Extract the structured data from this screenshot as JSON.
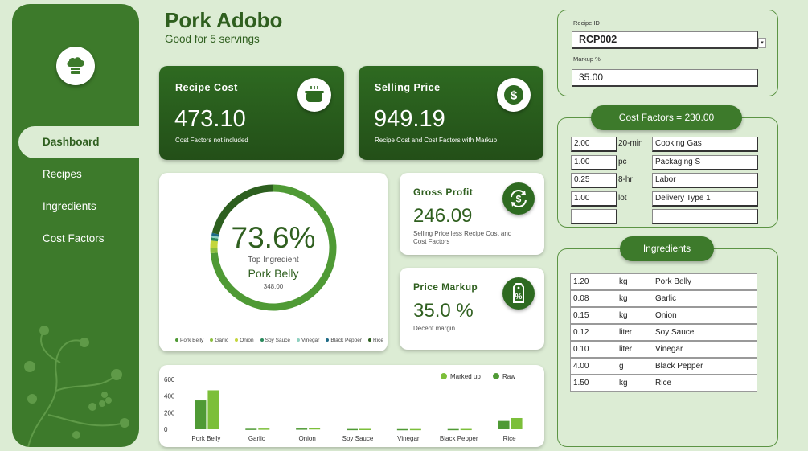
{
  "header": {
    "title": "Pork Adobo",
    "subtitle": "Good for 5 servings"
  },
  "sidebar": {
    "logo_icon": "chef-hat-icon",
    "items": [
      {
        "label": "Dashboard",
        "active": true
      },
      {
        "label": "Recipes",
        "active": false
      },
      {
        "label": "Ingredients",
        "active": false
      },
      {
        "label": "Cost Factors",
        "active": false
      }
    ]
  },
  "cards": {
    "recipe_cost": {
      "label": "Recipe Cost",
      "value": "473.10",
      "note": "Cost Factors not included",
      "icon": "pot-icon"
    },
    "selling_price": {
      "label": "Selling Price",
      "value": "949.19",
      "note": "Recipe Cost and Cost Factors with Markup",
      "icon": "dollar-icon"
    },
    "gross_profit": {
      "label": "Gross Profit",
      "value": "246.09",
      "note": "Selling Price less Recipe Cost and Cost Factors",
      "icon": "exchange-dollar-icon"
    },
    "price_markup": {
      "label": "Price Markup",
      "value": "35.0 %",
      "note": "Decent margin.",
      "icon": "percent-tag-icon"
    }
  },
  "donut": {
    "percent": "73.6%",
    "caption": "Top Ingredient",
    "name": "Pork Belly",
    "amount": "348.00"
  },
  "recipe_panel": {
    "recipe_id_label": "Recipe ID",
    "recipe_id": "RCP002",
    "markup_label": "Markup %",
    "markup": "35.00"
  },
  "cost_factors": {
    "title": "Cost Factors = 230.00",
    "rows": [
      {
        "qty": "2.00",
        "unit": "20-min",
        "name": "Cooking Gas"
      },
      {
        "qty": "1.00",
        "unit": "pc",
        "name": "Packaging S"
      },
      {
        "qty": "0.25",
        "unit": "8-hr",
        "name": "Labor"
      },
      {
        "qty": "1.00",
        "unit": "lot",
        "name": "Delivery Type 1"
      },
      {
        "qty": "",
        "unit": "",
        "name": ""
      }
    ]
  },
  "ingredients": {
    "title": "Ingredients",
    "rows": [
      {
        "qty": "1.20",
        "unit": "kg",
        "name": "Pork Belly"
      },
      {
        "qty": "0.08",
        "unit": "kg",
        "name": "Garlic"
      },
      {
        "qty": "0.15",
        "unit": "kg",
        "name": "Onion"
      },
      {
        "qty": "0.12",
        "unit": "liter",
        "name": "Soy Sauce"
      },
      {
        "qty": "0.10",
        "unit": "liter",
        "name": "Vinegar"
      },
      {
        "qty": "4.00",
        "unit": "g",
        "name": "Black Pepper"
      },
      {
        "qty": "1.50",
        "unit": "kg",
        "name": "Rice"
      }
    ]
  },
  "chart_data": [
    {
      "type": "pie",
      "categories": [
        "Pork Belly",
        "Garlic",
        "Onion",
        "Soy Sauce",
        "Vinegar",
        "Black Pepper",
        "Rice"
      ],
      "values": [
        348.0,
        6.4,
        9.0,
        3.6,
        2.5,
        3.2,
        100.4
      ],
      "colors": [
        "#4f9a35",
        "#8cbf3f",
        "#c4d63c",
        "#2a8a5c",
        "#8fd0c0",
        "#1e6a86",
        "#2d5f1f"
      ]
    },
    {
      "type": "bar",
      "categories": [
        "Pork Belly",
        "Garlic",
        "Onion",
        "Soy Sauce",
        "Vinegar",
        "Black Pepper",
        "Rice"
      ],
      "series": [
        {
          "name": "Raw",
          "values": [
            348.0,
            6.4,
            9.0,
            3.6,
            2.5,
            3.2,
            100.4
          ],
          "color": "#4f9a35"
        },
        {
          "name": "Marked up",
          "values": [
            469.8,
            8.64,
            12.15,
            4.86,
            3.38,
            4.32,
            135.54
          ],
          "color": "#7cbf3a"
        }
      ],
      "yticks": [
        "600",
        "400",
        "200",
        "0"
      ],
      "ylim": [
        0,
        600
      ]
    }
  ]
}
